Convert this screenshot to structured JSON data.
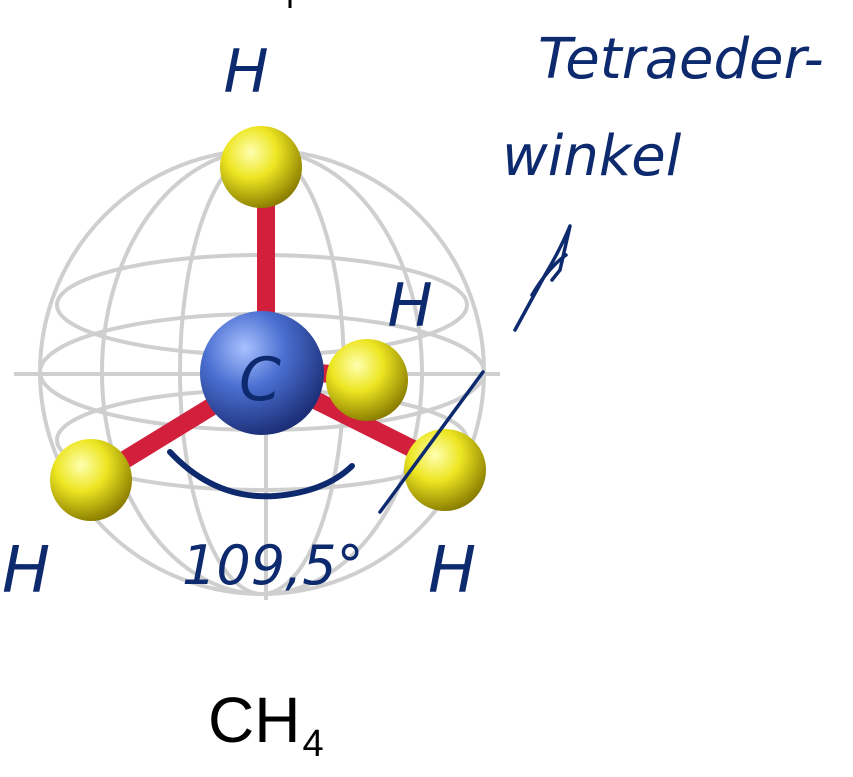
{
  "molecule": {
    "central_atom": "C",
    "ligand_atoms": [
      "H",
      "H",
      "H",
      "H"
    ],
    "formula_main": "CH",
    "formula_subscript": "4"
  },
  "annotations": {
    "bond_angle": "109,5°",
    "handwritten_note_line1": "Tetraeder-",
    "handwritten_note_line2": "winkel"
  },
  "colors": {
    "carbon": "#4a6fd1",
    "hydrogen": "#e6e020",
    "bond": "#d21f3c",
    "sphere_grid": "#cfcfcf",
    "ink": "#0e2a6e"
  }
}
